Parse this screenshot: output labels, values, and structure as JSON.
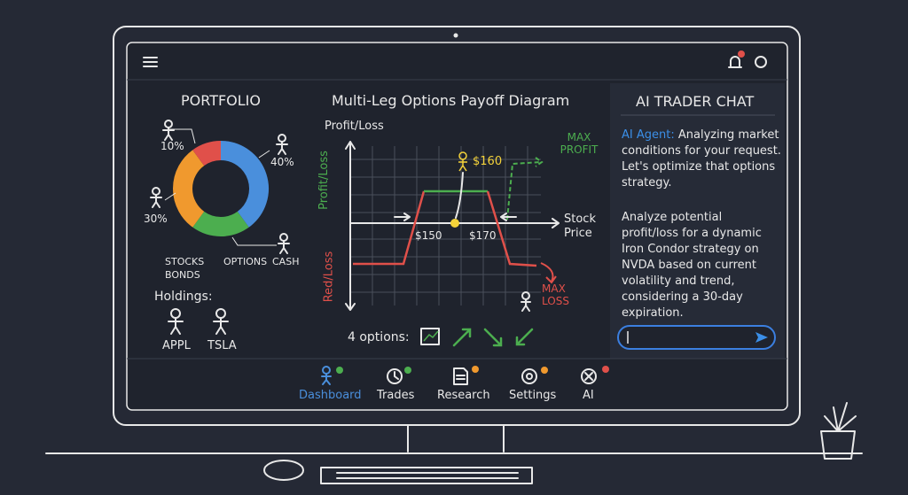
{
  "portfolio": {
    "title": "PORTFOLIO",
    "segments": [
      {
        "value": 40,
        "label": "40%",
        "color": "#4a8fdc"
      },
      {
        "value": 20,
        "color": "#4cae4f"
      },
      {
        "value": 30,
        "label": "30%",
        "color": "#f0992e"
      },
      {
        "value": 10,
        "label": "10%",
        "color": "#e0504a"
      }
    ],
    "legend": [
      "STOCKS",
      "OPTIONS",
      "CASH",
      "BONDS"
    ],
    "holdings_title": "Holdings:",
    "holdings": [
      "APPL",
      "TSLA"
    ]
  },
  "payoff": {
    "title": "Multi-Leg Options Payoff Diagram",
    "y_axis": "Profit/Loss",
    "profit_label": "Profit/Loss",
    "loss_label": "Red/Loss",
    "x_axis": "Stock Price",
    "marker": "$160",
    "strikes": [
      "$150",
      "$170"
    ],
    "max_profit": "MAX PROFIT",
    "max_loss": "MAX LOSS",
    "options_label": "4 options:"
  },
  "chat": {
    "title": "AI TRADER CHAT",
    "agent_name": "AI Agent:",
    "agent_message": "Analyzing market conditions for your request. Let's optimize that options strategy.",
    "user_prompt": "Analyze potential profit/loss for a dynamic Iron Condor strategy on NVDA based on current volatility and trend, considering a 30-day expiration."
  },
  "nav": [
    "Dashboard",
    "Trades",
    "Research",
    "Settings",
    "AI"
  ]
}
